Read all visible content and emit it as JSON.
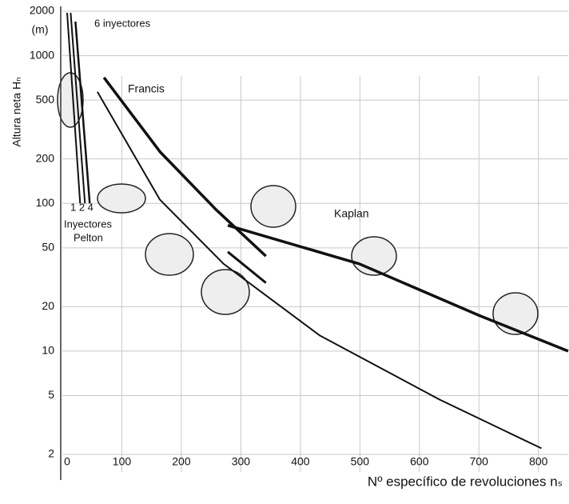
{
  "chart_data": {
    "type": "line",
    "y_label": "Altura neta Hₙ",
    "y_unit": "(m)",
    "x_label": "Nº específico de revoluciones nₛ",
    "log_y": true,
    "grid": true,
    "xlim": [
      0,
      850
    ],
    "xticks": [
      0,
      100,
      200,
      300,
      400,
      500,
      600,
      700,
      800
    ],
    "ylim": [
      2,
      2000
    ],
    "yticks": [
      2,
      5,
      10,
      20,
      50,
      100,
      200,
      500,
      1000,
      2000
    ],
    "series": [
      {
        "name": "Francis",
        "color": "#111111",
        "x": [
          70,
          164,
          258,
          342
        ],
        "values": [
          711,
          224,
          91,
          44
        ]
      },
      {
        "color": "#111111",
        "x": [
          59,
          164,
          271,
          432,
          634,
          805
        ],
        "values": [
          569,
          106,
          39,
          12.8,
          4.7,
          2.2
        ]
      },
      {
        "name": "Kaplan",
        "color": "#111111",
        "x": [
          278,
          499,
          701,
          850
        ],
        "values": [
          71,
          39,
          17.4,
          10
        ]
      },
      {
        "color": "#111111",
        "x": [
          278,
          342
        ],
        "values": [
          47,
          29
        ]
      },
      {
        "color": "#111111",
        "x": [
          8,
          30
        ],
        "values": [
          1950,
          100
        ]
      },
      {
        "color": "#111111",
        "x": [
          14,
          38
        ],
        "values": [
          1950,
          100
        ]
      },
      {
        "color": "#111111",
        "x": [
          22,
          46
        ],
        "values": [
          1700,
          100
        ]
      }
    ],
    "annotations": [
      "6 inyectores",
      "1 2 4",
      "Inyectores",
      "Pelton"
    ]
  }
}
